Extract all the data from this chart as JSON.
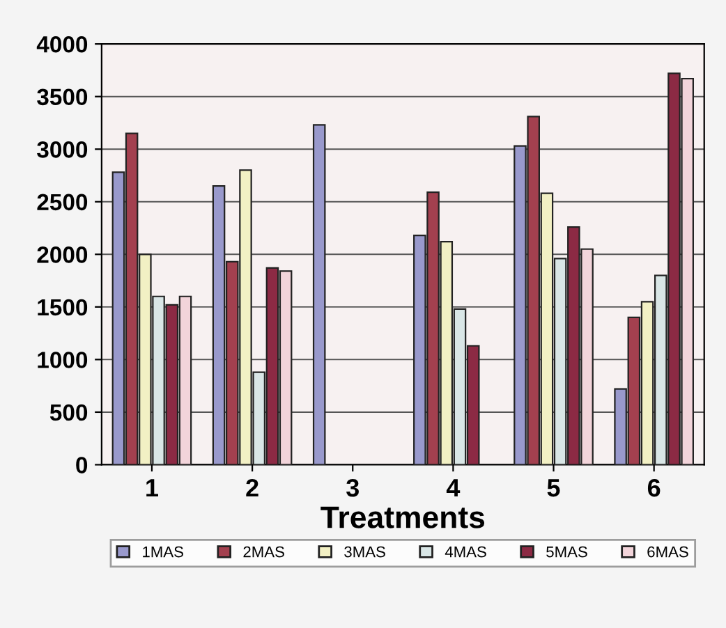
{
  "chart_data": {
    "type": "bar",
    "xlabel": "Treatments",
    "categories": [
      "1",
      "2",
      "3",
      "4",
      "5",
      "6"
    ],
    "series": [
      {
        "name": "1MAS",
        "color": "#9999cc",
        "values": [
          2780,
          2650,
          3230,
          2180,
          3030,
          720
        ]
      },
      {
        "name": "2MAS",
        "color": "#a3404f",
        "values": [
          3150,
          1930,
          null,
          2590,
          3310,
          1400
        ]
      },
      {
        "name": "3MAS",
        "color": "#f2f0c4",
        "values": [
          2000,
          2800,
          null,
          2120,
          2580,
          1550
        ]
      },
      {
        "name": "4MAS",
        "color": "#d9e6e6",
        "values": [
          1600,
          880,
          null,
          1480,
          1960,
          1800
        ]
      },
      {
        "name": "5MAS",
        "color": "#8c2a44",
        "values": [
          1520,
          1870,
          null,
          1130,
          2260,
          3720
        ]
      },
      {
        "name": "6MAS",
        "color": "#f2d4da",
        "values": [
          1600,
          1840,
          null,
          null,
          2050,
          3670
        ]
      }
    ],
    "ylim": [
      0,
      4000
    ],
    "yticks": [
      0,
      500,
      1000,
      1500,
      2000,
      2500,
      3000,
      3500,
      4000
    ],
    "grid": "y",
    "legend": "bottom"
  }
}
